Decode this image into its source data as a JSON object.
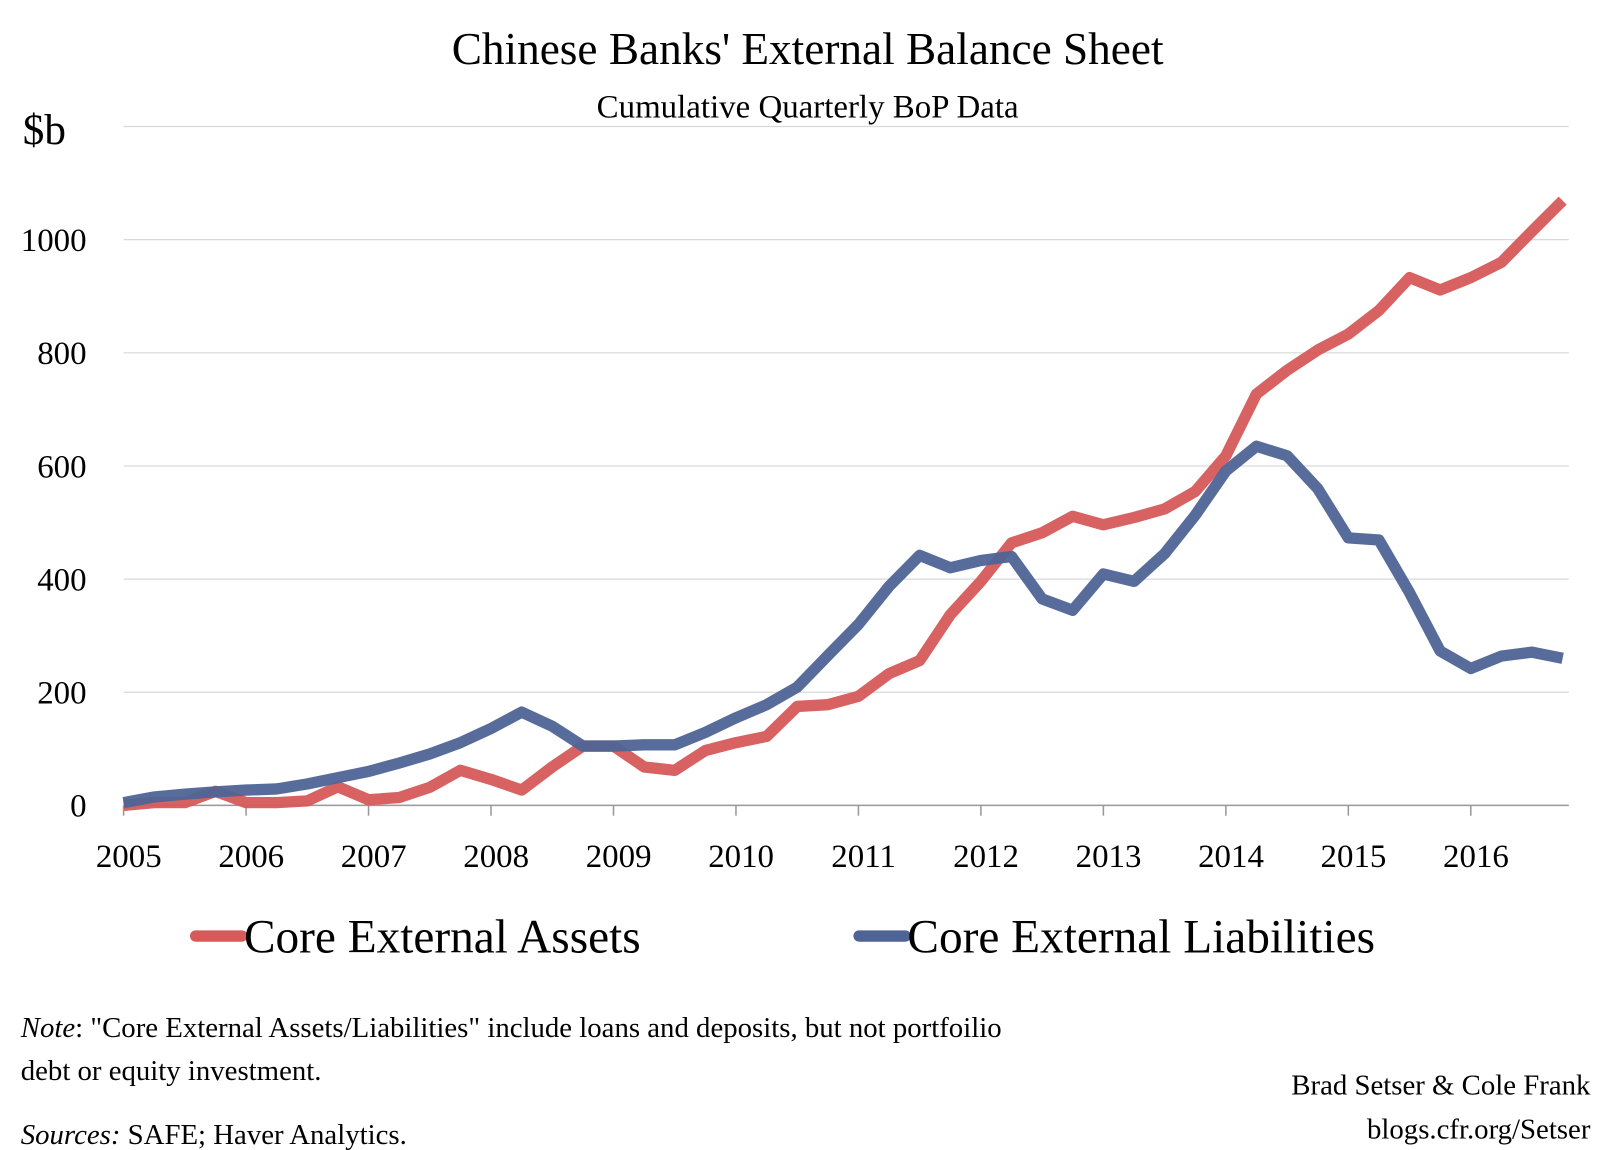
{
  "chart_data": {
    "type": "line",
    "title": "Chinese Banks' External Balance Sheet",
    "subtitle": "Cumulative Quarterly BoP Data",
    "y_label": "$b",
    "categories": [
      "2005",
      null,
      null,
      null,
      "2006",
      null,
      null,
      null,
      "2007",
      null,
      null,
      null,
      "2008",
      null,
      null,
      null,
      "2009",
      null,
      null,
      null,
      "2010",
      null,
      null,
      null,
      "2011",
      null,
      null,
      null,
      "2012",
      null,
      null,
      null,
      "2013",
      null,
      null,
      null,
      "2014",
      null,
      null,
      null,
      "2015",
      null,
      null,
      null,
      "2016",
      null,
      null,
      null
    ],
    "series": [
      {
        "name": "Core External Assets",
        "color": "#d65a5a",
        "values": [
          0,
          5,
          5,
          25,
          5,
          5,
          8,
          33,
          10,
          14,
          32,
          62,
          46,
          27,
          68,
          105,
          105,
          68,
          62,
          97,
          111,
          122,
          175,
          178,
          193,
          233,
          256,
          337,
          396,
          464,
          482,
          511,
          496,
          509,
          524,
          555,
          618,
          727,
          769,
          805,
          833,
          875,
          933,
          911,
          933,
          960,
          1015,
          1069
        ]
      },
      {
        "name": "Core External Liabilities",
        "color": "#4f6496",
        "values": [
          5,
          15,
          20,
          24,
          27,
          29,
          38,
          49,
          60,
          75,
          91,
          111,
          136,
          165,
          140,
          105,
          105,
          107,
          107,
          129,
          155,
          178,
          209,
          265,
          320,
          387,
          442,
          420,
          433,
          440,
          365,
          345,
          409,
          396,
          445,
          513,
          591,
          635,
          618,
          560,
          473,
          469,
          376,
          273,
          242,
          264,
          271,
          260
        ]
      }
    ],
    "ylim": [
      0,
      1200
    ],
    "yticks": [
      0,
      200,
      400,
      600,
      800,
      1000
    ],
    "grid": true,
    "legend": "bottom",
    "note": {
      "label": "Note",
      "lines": [
        ": \"Core External Assets/Liabilities\" include loans and deposits, but not portfoilio",
        "debt or equity investment."
      ]
    },
    "sources": {
      "label": "Sources:",
      "text": " SAFE; Haver Analytics."
    },
    "credits": [
      "Brad Setser & Cole Frank",
      "blogs.cfr.org/Setser"
    ]
  }
}
